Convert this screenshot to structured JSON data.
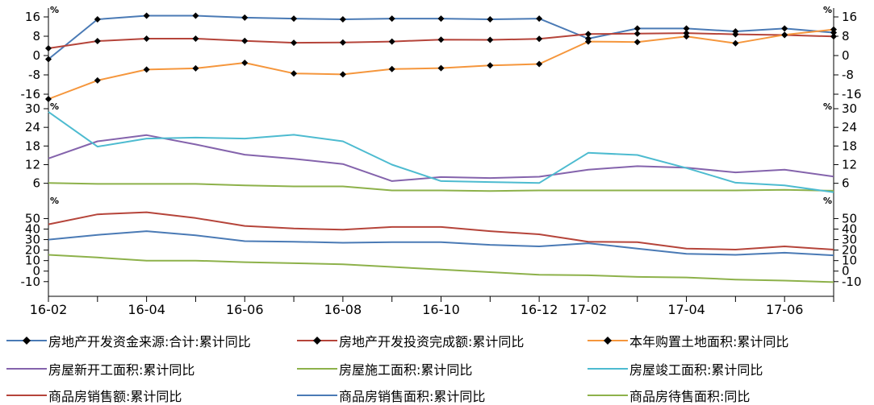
{
  "chart_data": {
    "type": "line",
    "x": [
      "16-02",
      "16-03",
      "16-04",
      "16-05",
      "16-06",
      "16-07",
      "16-08",
      "16-09",
      "16-10",
      "16-11",
      "16-12",
      "17-02",
      "17-03",
      "17-04",
      "17-05",
      "17-06",
      "17-07"
    ],
    "x_tick_labels": [
      "16-02",
      "16-04",
      "16-06",
      "16-08",
      "16-10",
      "16-12",
      "17-02",
      "17-04",
      "17-06"
    ],
    "panels": [
      {
        "unit": "%",
        "ylim": [
          -16,
          16
        ],
        "y_ticks": [
          "16",
          "8",
          "0",
          "-8",
          "-16"
        ],
        "series": [
          {
            "name": "房地产开发资金来源:合计:累计同比",
            "color": "#4a7ab5",
            "marker": true,
            "values": [
              -1.5,
              15,
              16.5,
              16.5,
              15.7,
              15.3,
              15,
              15.3,
              15.3,
              15,
              15.3,
              7,
              11.2,
              11.2,
              10,
              11.2,
              9.5
            ]
          },
          {
            "name": "房地产开发投资完成额:累计同比",
            "color": "#b5443a",
            "marker": true,
            "values": [
              3,
              6,
              7,
              7,
              6.1,
              5.3,
              5.4,
              5.8,
              6.6,
              6.5,
              6.9,
              8.9,
              9.1,
              9.3,
              8.8,
              8.5,
              7.9
            ]
          },
          {
            "name": "本年购置土地面积:累计同比",
            "color": "#f5963c",
            "marker": true,
            "values": [
              -18,
              -10.3,
              -5.8,
              -5.3,
              -3,
              -7.4,
              -7.8,
              -5.6,
              -5.2,
              -4.1,
              -3.5,
              5.8,
              5.6,
              7.9,
              5.1,
              8.6,
              10.8
            ]
          }
        ]
      },
      {
        "unit": "%",
        "ylim": [
          2.8,
          30
        ],
        "y_ticks": [
          "30",
          "24",
          "18",
          "12",
          "6"
        ],
        "series": [
          {
            "name": "房屋新开工面积:累计同比",
            "color": "#8463ac",
            "values": [
              14,
              19.5,
              21.5,
              18.5,
              15.2,
              13.9,
              12.2,
              6.7,
              8,
              7.7,
              8.1,
              10.4,
              11.5,
              11,
              9.5,
              10.4,
              8.2
            ]
          },
          {
            "name": "房屋施工面积:累计同比",
            "color": "#8db14a",
            "values": [
              6.1,
              5.8,
              5.8,
              5.8,
              5.3,
              5,
              5,
              3.7,
              3.7,
              3.5,
              3.7,
              3.7,
              3.7,
              3.7,
              3.7,
              3.9,
              3.6
            ]
          },
          {
            "name": "房屋竣工面积:累计同比",
            "color": "#4dbbd0",
            "values": [
              29,
              17.8,
              20.4,
              20.7,
              20.4,
              21.6,
              19.5,
              12,
              6.7,
              6.4,
              6.1,
              15.8,
              15.1,
              10.9,
              6.2,
              5.3,
              3.1
            ]
          }
        ]
      },
      {
        "unit": "%",
        "ylim": [
          -14,
          58
        ],
        "y_ticks": [
          "50",
          "40",
          "30",
          "20",
          "10",
          "0",
          "-10"
        ],
        "series": [
          {
            "name": "商品房销售额:累计同比",
            "color": "#b5443a",
            "values": [
              44.5,
              54,
              56,
              50.5,
              43,
              40.5,
              39.5,
              42,
              42,
              38,
              35,
              28,
              27.5,
              21.5,
              20.5,
              23.5,
              20.5
            ]
          },
          {
            "name": "商品房销售面积:累计同比",
            "color": "#4a7ab5",
            "values": [
              30,
              34.5,
              38,
              34,
              28.5,
              28,
              27,
              27.5,
              27.5,
              25,
              23.5,
              26.5,
              21.5,
              16.5,
              15.5,
              17.5,
              15
            ]
          },
          {
            "name": "商品房待售面积:同比",
            "color": "#8db14a",
            "values": [
              15.5,
              13,
              10,
              10,
              8.5,
              7.5,
              6.5,
              4,
              1.5,
              -1,
              -3.5,
              -4,
              -5.5,
              -6,
              -8,
              -9,
              -10.5
            ]
          }
        ]
      }
    ],
    "legend": [
      {
        "label": "房地产开发资金来源:合计:累计同比",
        "color": "#4a7ab5",
        "marker": true
      },
      {
        "label": "房地产开发投资完成额:累计同比",
        "color": "#b5443a",
        "marker": true
      },
      {
        "label": "本年购置土地面积:累计同比",
        "color": "#f5963c",
        "marker": true
      },
      {
        "label": "房屋新开工面积:累计同比",
        "color": "#8463ac",
        "marker": false
      },
      {
        "label": "房屋施工面积:累计同比",
        "color": "#8db14a",
        "marker": false
      },
      {
        "label": "房屋竣工面积:累计同比",
        "color": "#4dbbd0",
        "marker": false
      },
      {
        "label": "商品房销售额:累计同比",
        "color": "#b5443a",
        "marker": false
      },
      {
        "label": "商品房销售面积:累计同比",
        "color": "#4a7ab5",
        "marker": false
      },
      {
        "label": "商品房待售面积:同比",
        "color": "#8db14a",
        "marker": false
      }
    ],
    "grid": false,
    "legend_position": "bottom"
  }
}
